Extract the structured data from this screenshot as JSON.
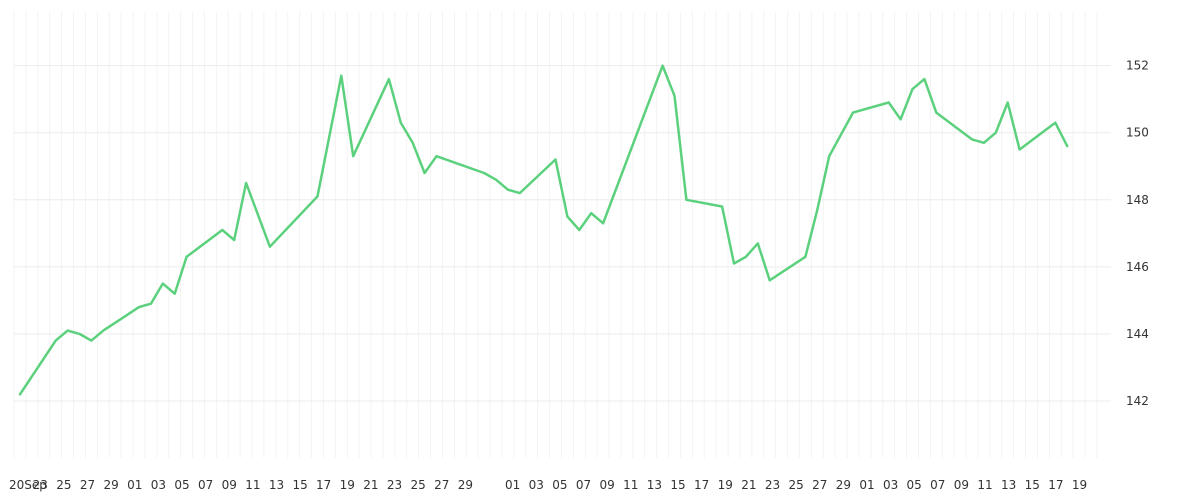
{
  "chart_data": {
    "type": "line",
    "x_tick_labels": [
      "20Sep",
      "23",
      "25",
      "27",
      "29",
      "01",
      "03",
      "05",
      "07",
      "09",
      "11",
      "13",
      "15",
      "17",
      "19",
      "21",
      "23",
      "25",
      "27",
      "29",
      "",
      "01",
      "03",
      "05",
      "07",
      "09",
      "11",
      "13",
      "15",
      "17",
      "19",
      "21",
      "23",
      "25",
      "27",
      "29",
      "01",
      "03",
      "05",
      "07",
      "09",
      "11",
      "13",
      "15",
      "17",
      "19"
    ],
    "y_tick_labels": [
      "142",
      "144",
      "146",
      "148",
      "150",
      "152"
    ],
    "ylim": [
      140.3,
      153.6
    ],
    "grid": true,
    "y_axis_position": "right",
    "series": [
      {
        "color": "#5cd17d",
        "values": [
          [
            0,
            142.2
          ],
          [
            3,
            143.8
          ],
          [
            4,
            144.1
          ],
          [
            5,
            144.0
          ],
          [
            6,
            143.8
          ],
          [
            7,
            144.1
          ],
          [
            10,
            144.8
          ],
          [
            11,
            144.9
          ],
          [
            12,
            145.5
          ],
          [
            13,
            145.2
          ],
          [
            14,
            146.3
          ],
          [
            17,
            147.1
          ],
          [
            18,
            146.8
          ],
          [
            19,
            148.5
          ],
          [
            21,
            146.6
          ],
          [
            25,
            148.1
          ],
          [
            27,
            151.7
          ],
          [
            28,
            149.3
          ],
          [
            31,
            151.6
          ],
          [
            32,
            150.3
          ],
          [
            33,
            149.7
          ],
          [
            34,
            148.8
          ],
          [
            35,
            149.3
          ],
          [
            39,
            148.8
          ],
          [
            40,
            148.6
          ],
          [
            41,
            148.3
          ],
          [
            42,
            148.2
          ],
          [
            45,
            149.2
          ],
          [
            46,
            147.5
          ],
          [
            47,
            147.1
          ],
          [
            48,
            147.6
          ],
          [
            49,
            147.3
          ],
          [
            54,
            152.0
          ],
          [
            55,
            151.1
          ],
          [
            56,
            148.0
          ],
          [
            59,
            147.8
          ],
          [
            60,
            146.1
          ],
          [
            61,
            146.3
          ],
          [
            62,
            146.7
          ],
          [
            63,
            145.6
          ],
          [
            66,
            146.3
          ],
          [
            67,
            147.7
          ],
          [
            68,
            149.3
          ],
          [
            70,
            150.6
          ],
          [
            73,
            150.9
          ],
          [
            74,
            150.4
          ],
          [
            75,
            151.3
          ],
          [
            76,
            151.6
          ],
          [
            77,
            150.6
          ],
          [
            80,
            149.8
          ],
          [
            81,
            149.7
          ],
          [
            82,
            150.0
          ],
          [
            83,
            150.9
          ],
          [
            84,
            149.5
          ],
          [
            87,
            150.3
          ],
          [
            88,
            149.6
          ]
        ]
      }
    ]
  }
}
